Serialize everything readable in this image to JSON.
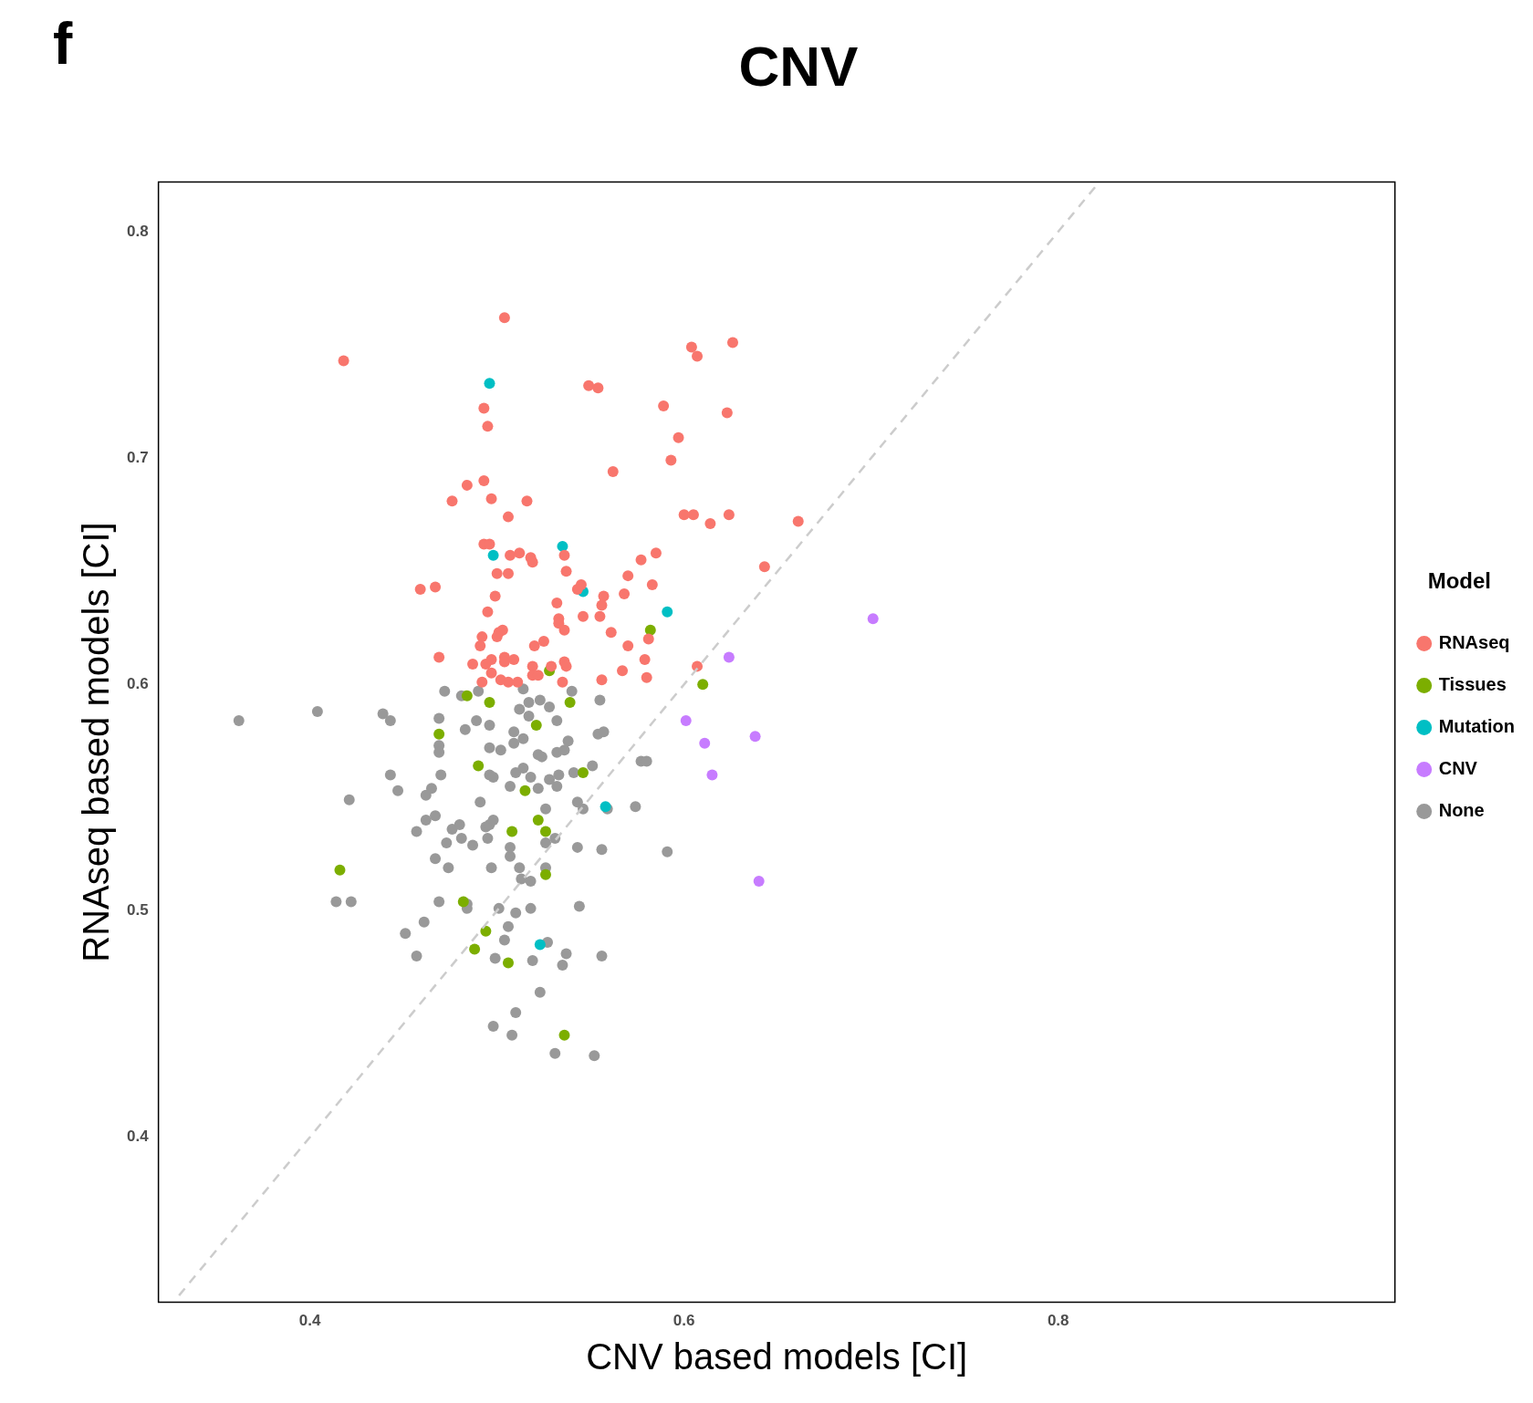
{
  "chart_data": {
    "type": "scatter",
    "title": "CNV",
    "xlabel": "CNV based models [CI]",
    "ylabel": "RNAseq based models [CI]",
    "legend_title": "Model",
    "annotations": [
      "f"
    ],
    "xlim": [
      0.319,
      0.98
    ],
    "ylim": [
      0.327,
      0.822
    ],
    "xticks": [
      0.4,
      0.6,
      0.8
    ],
    "yticks": [
      0.4,
      0.5,
      0.6,
      0.7,
      0.8
    ],
    "grid": false,
    "legend": "right",
    "marker": "circle",
    "series": [
      {
        "type": "line",
        "color": "#cccccc",
        "line_style": "dashed",
        "marker": "none",
        "x": [
          0.33,
          0.82
        ],
        "values": [
          0.33,
          0.82
        ]
      },
      {
        "name": "RNAseq",
        "color": "#f8766d",
        "x": [
          0.418,
          0.504,
          0.549,
          0.554,
          0.604,
          0.607,
          0.626,
          0.589,
          0.623,
          0.597,
          0.593,
          0.493,
          0.495,
          0.562,
          0.493,
          0.484,
          0.476,
          0.497,
          0.516,
          0.506,
          0.6,
          0.605,
          0.614,
          0.624,
          0.661,
          0.643,
          0.493,
          0.496,
          0.507,
          0.512,
          0.518,
          0.519,
          0.536,
          0.537,
          0.585,
          0.577,
          0.57,
          0.583,
          0.467,
          0.459,
          0.5,
          0.506,
          0.545,
          0.543,
          0.557,
          0.568,
          0.499,
          0.532,
          0.533,
          0.533,
          0.536,
          0.546,
          0.555,
          0.556,
          0.561,
          0.495,
          0.501,
          0.503,
          0.5,
          0.492,
          0.491,
          0.52,
          0.525,
          0.57,
          0.581,
          0.469,
          0.487,
          0.494,
          0.497,
          0.504,
          0.504,
          0.509,
          0.519,
          0.536,
          0.537,
          0.579,
          0.607,
          0.497,
          0.492,
          0.502,
          0.506,
          0.511,
          0.519,
          0.522,
          0.535,
          0.556,
          0.58,
          0.567,
          0.529
        ],
        "values": [
          0.743,
          0.762,
          0.732,
          0.731,
          0.749,
          0.745,
          0.751,
          0.723,
          0.72,
          0.709,
          0.699,
          0.722,
          0.714,
          0.694,
          0.69,
          0.688,
          0.681,
          0.682,
          0.681,
          0.674,
          0.675,
          0.675,
          0.671,
          0.675,
          0.672,
          0.652,
          0.662,
          0.662,
          0.657,
          0.658,
          0.656,
          0.654,
          0.657,
          0.65,
          0.658,
          0.655,
          0.648,
          0.644,
          0.643,
          0.642,
          0.649,
          0.649,
          0.644,
          0.642,
          0.639,
          0.64,
          0.639,
          0.636,
          0.629,
          0.627,
          0.624,
          0.63,
          0.63,
          0.635,
          0.623,
          0.632,
          0.623,
          0.624,
          0.621,
          0.621,
          0.617,
          0.617,
          0.619,
          0.617,
          0.62,
          0.612,
          0.609,
          0.609,
          0.611,
          0.612,
          0.61,
          0.611,
          0.608,
          0.61,
          0.608,
          0.611,
          0.608,
          0.605,
          0.601,
          0.602,
          0.601,
          0.601,
          0.604,
          0.604,
          0.601,
          0.602,
          0.603,
          0.606,
          0.608
        ]
      },
      {
        "name": "Tissues",
        "color": "#7cae00",
        "x": [
          0.416,
          0.469,
          0.484,
          0.496,
          0.528,
          0.539,
          0.521,
          0.582,
          0.61,
          0.49,
          0.546,
          0.515,
          0.522,
          0.508,
          0.526,
          0.526,
          0.482,
          0.494,
          0.488,
          0.506,
          0.536
        ],
        "values": [
          0.518,
          0.578,
          0.595,
          0.592,
          0.606,
          0.592,
          0.582,
          0.624,
          0.6,
          0.564,
          0.561,
          0.553,
          0.54,
          0.535,
          0.535,
          0.516,
          0.504,
          0.491,
          0.483,
          0.477,
          0.445
        ]
      },
      {
        "name": "Mutation",
        "color": "#00bfc4",
        "x": [
          0.496,
          0.546,
          0.535,
          0.498,
          0.591,
          0.558,
          0.523
        ],
        "values": [
          0.733,
          0.641,
          0.661,
          0.657,
          0.632,
          0.546,
          0.485
        ]
      },
      {
        "name": "CNV",
        "color": "#c77cff",
        "x": [
          0.701,
          0.624,
          0.601,
          0.611,
          0.638,
          0.615,
          0.64
        ],
        "values": [
          0.629,
          0.612,
          0.584,
          0.574,
          0.577,
          0.56,
          0.513
        ]
      },
      {
        "name": "None",
        "color": "#999999",
        "x": [
          0.362,
          0.404,
          0.439,
          0.443,
          0.421,
          0.443,
          0.447,
          0.414,
          0.422,
          0.451,
          0.461,
          0.457,
          0.457,
          0.462,
          0.462,
          0.465,
          0.467,
          0.467,
          0.469,
          0.469,
          0.469,
          0.469,
          0.47,
          0.472,
          0.473,
          0.474,
          0.476,
          0.48,
          0.481,
          0.481,
          0.483,
          0.484,
          0.484,
          0.487,
          0.489,
          0.49,
          0.491,
          0.494,
          0.496,
          0.496,
          0.496,
          0.496,
          0.495,
          0.497,
          0.498,
          0.498,
          0.499,
          0.498,
          0.501,
          0.502,
          0.504,
          0.506,
          0.507,
          0.507,
          0.507,
          0.509,
          0.509,
          0.51,
          0.51,
          0.51,
          0.508,
          0.512,
          0.513,
          0.512,
          0.514,
          0.514,
          0.514,
          0.517,
          0.517,
          0.518,
          0.518,
          0.518,
          0.519,
          0.522,
          0.522,
          0.523,
          0.523,
          0.524,
          0.526,
          0.526,
          0.526,
          0.527,
          0.528,
          0.528,
          0.531,
          0.531,
          0.532,
          0.532,
          0.532,
          0.533,
          0.535,
          0.536,
          0.538,
          0.537,
          0.54,
          0.541,
          0.543,
          0.543,
          0.544,
          0.546,
          0.551,
          0.552,
          0.554,
          0.555,
          0.556,
          0.556,
          0.557,
          0.559,
          0.574,
          0.577,
          0.58,
          0.591
        ],
        "values": [
          0.584,
          0.588,
          0.587,
          0.584,
          0.549,
          0.56,
          0.553,
          0.504,
          0.504,
          0.49,
          0.495,
          0.48,
          0.535,
          0.54,
          0.551,
          0.554,
          0.542,
          0.523,
          0.504,
          0.585,
          0.573,
          0.57,
          0.56,
          0.597,
          0.53,
          0.519,
          0.536,
          0.538,
          0.595,
          0.532,
          0.58,
          0.503,
          0.501,
          0.529,
          0.584,
          0.597,
          0.548,
          0.537,
          0.582,
          0.538,
          0.56,
          0.572,
          0.532,
          0.519,
          0.54,
          0.559,
          0.479,
          0.449,
          0.501,
          0.571,
          0.487,
          0.493,
          0.524,
          0.528,
          0.555,
          0.579,
          0.574,
          0.561,
          0.499,
          0.455,
          0.445,
          0.519,
          0.514,
          0.589,
          0.598,
          0.563,
          0.576,
          0.586,
          0.592,
          0.501,
          0.513,
          0.559,
          0.478,
          0.569,
          0.554,
          0.593,
          0.464,
          0.568,
          0.545,
          0.53,
          0.519,
          0.486,
          0.59,
          0.558,
          0.437,
          0.532,
          0.57,
          0.584,
          0.555,
          0.56,
          0.476,
          0.571,
          0.575,
          0.481,
          0.597,
          0.561,
          0.548,
          0.528,
          0.502,
          0.545,
          0.564,
          0.436,
          0.578,
          0.593,
          0.527,
          0.48,
          0.579,
          0.545,
          0.546,
          0.566,
          0.566,
          0.526
        ]
      }
    ]
  }
}
